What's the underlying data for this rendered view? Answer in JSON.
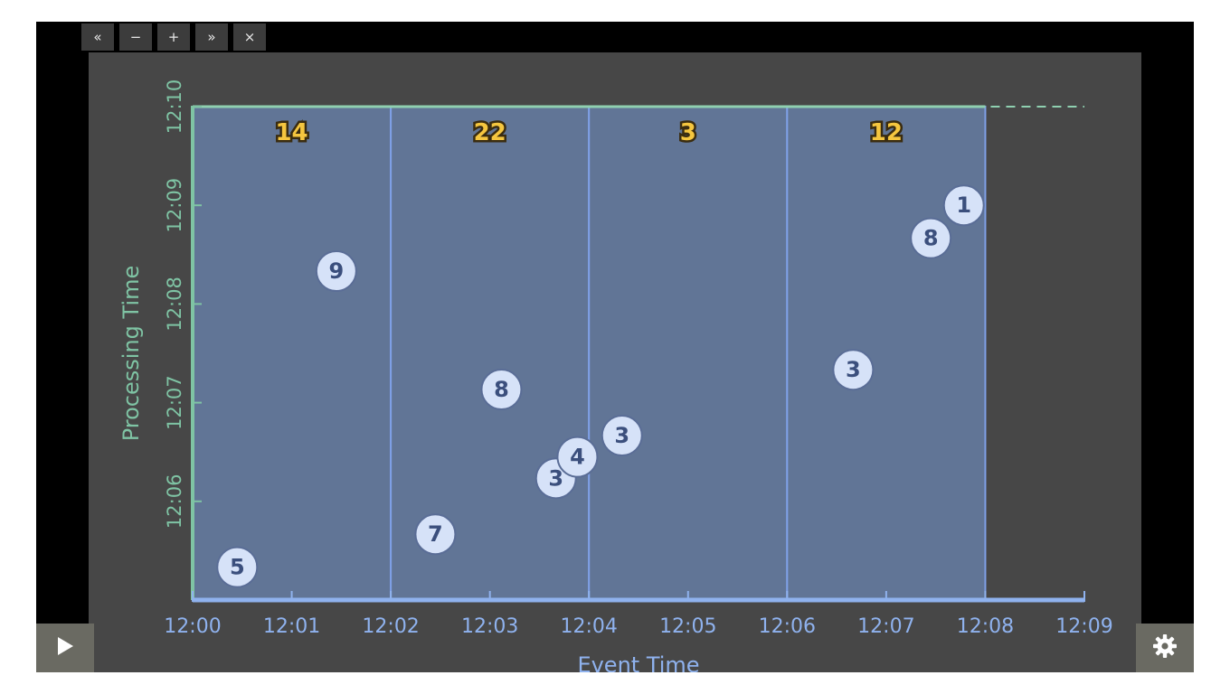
{
  "controls": {
    "prev_label": "«",
    "minus_label": "−",
    "plus_label": "+",
    "next_label": "»",
    "close_label": "×"
  },
  "icons": {
    "play": "play-icon",
    "settings": "gear-icon"
  },
  "colors": {
    "stage_bg": "#474747",
    "window_fill": "#617596",
    "window_stroke": "#7fa0e6",
    "x_axis": "#8fb2ee",
    "y_axis": "#7fc4a4",
    "point_fill": "#d6e2f8",
    "point_text": "#3b4f7d",
    "window_label": "#f5c63f"
  },
  "chart_data": {
    "type": "scatter",
    "xlabel": "Event Time",
    "ylabel": "Processing Time",
    "x_ticks": [
      "12:00",
      "12:01",
      "12:02",
      "12:03",
      "12:04",
      "12:05",
      "12:06",
      "12:07",
      "12:08",
      "12:09"
    ],
    "y_ticks": [
      "12:06",
      "12:07",
      "12:08",
      "12:09",
      "12:10"
    ],
    "xlim": [
      "12:00",
      "12:09"
    ],
    "ylim": [
      "12:05",
      "12:10"
    ],
    "windows": [
      {
        "start": "12:00",
        "end": "12:02",
        "sum": "14"
      },
      {
        "start": "12:02",
        "end": "12:04",
        "sum": "22"
      },
      {
        "start": "12:04",
        "end": "12:06",
        "sum": "3"
      },
      {
        "start": "12:06",
        "end": "12:08",
        "sum": "12"
      }
    ],
    "watermark": "12:10",
    "points": [
      {
        "event_time": "12:00:27",
        "processing_time": "12:05:20",
        "value": "5"
      },
      {
        "event_time": "12:01:27",
        "processing_time": "12:08:20",
        "value": "9"
      },
      {
        "event_time": "12:02:27",
        "processing_time": "12:05:40",
        "value": "7"
      },
      {
        "event_time": "12:03:07",
        "processing_time": "12:07:08",
        "value": "8"
      },
      {
        "event_time": "12:03:40",
        "processing_time": "12:06:14",
        "value": "3"
      },
      {
        "event_time": "12:03:53",
        "processing_time": "12:06:27",
        "value": "4"
      },
      {
        "event_time": "12:04:20",
        "processing_time": "12:06:40",
        "value": "3"
      },
      {
        "event_time": "12:06:40",
        "processing_time": "12:07:20",
        "value": "3"
      },
      {
        "event_time": "12:07:27",
        "processing_time": "12:08:40",
        "value": "8"
      },
      {
        "event_time": "12:07:47",
        "processing_time": "12:09:00",
        "value": "1"
      }
    ]
  }
}
